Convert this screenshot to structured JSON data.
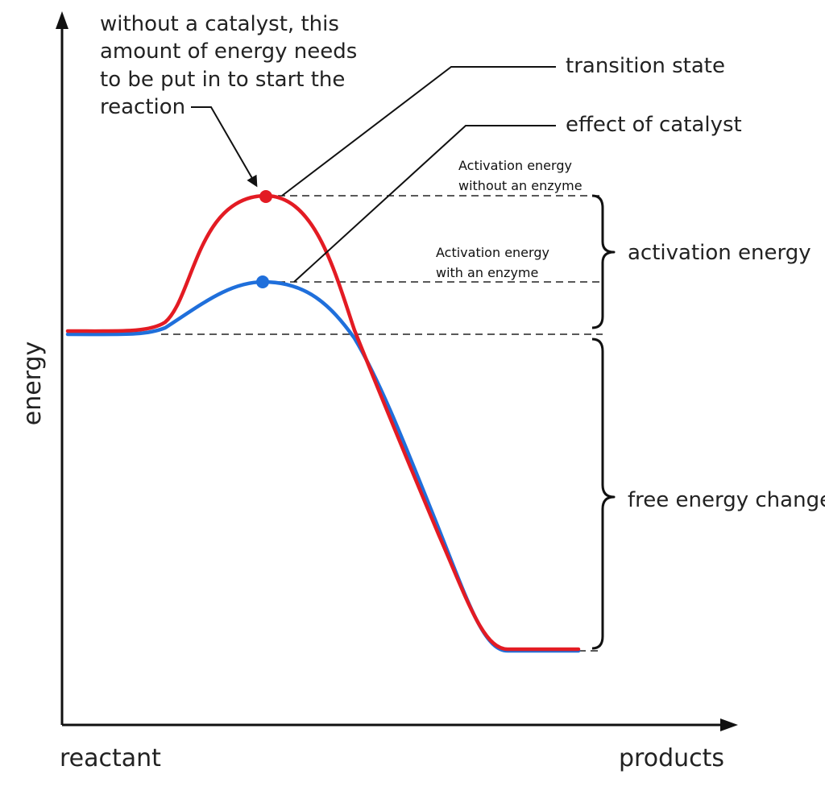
{
  "axes": {
    "y_label": "energy",
    "x_start_label": "reactant",
    "x_end_label": "products"
  },
  "annotations": {
    "without_catalyst_note": [
      "without a catalyst, this",
      "amount of energy needs",
      "to be put in to start the",
      "reaction"
    ],
    "transition_state": "transition state",
    "effect_of_catalyst": "effect of catalyst",
    "ae_without_enzyme": [
      "Activation energy",
      "without an enzyme"
    ],
    "ae_with_enzyme": [
      "Activation energy",
      "with an enzyme"
    ],
    "activation_energy": "activation energy",
    "free_energy_change": "free energy change"
  },
  "colors": {
    "uncatalyzed_curve": "#e31b23",
    "catalyzed_curve": "#1f6fdb",
    "axis": "#111111"
  }
}
